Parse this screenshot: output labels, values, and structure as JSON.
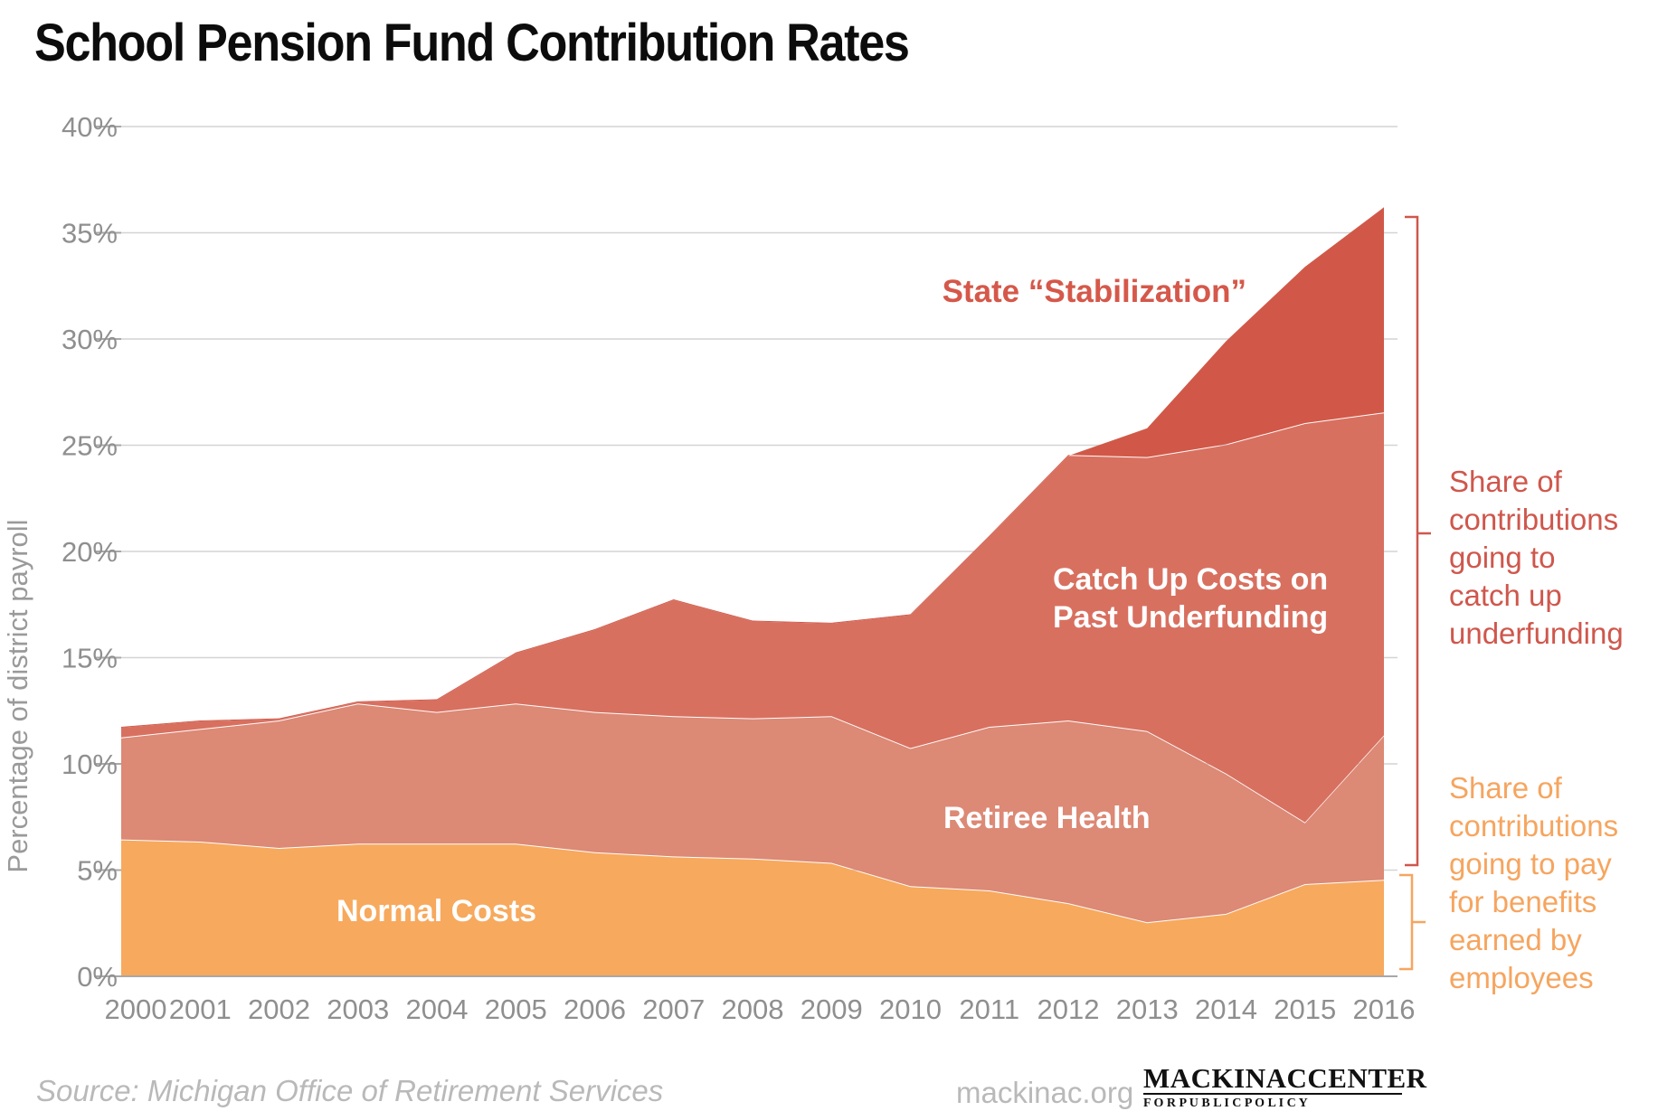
{
  "title": "School Pension Fund Contribution Rates",
  "chart_data": {
    "type": "area",
    "stacked": true,
    "title": "School Pension Fund Contribution Rates",
    "xlabel": "",
    "ylabel": "Percentage of district payroll",
    "ylim": [
      0,
      40
    ],
    "grid": true,
    "y_ticks": [
      "0%",
      "5%",
      "10%",
      "15%",
      "20%",
      "25%",
      "30%",
      "35%",
      "40%"
    ],
    "categories": [
      "2000",
      "2001",
      "2002",
      "2003",
      "2004",
      "2005",
      "2006",
      "2007",
      "2008",
      "2009",
      "2010",
      "2011",
      "2012",
      "2013",
      "2014",
      "2015",
      "2016"
    ],
    "series": [
      {
        "name": "Normal Costs",
        "color": "#f7a95d",
        "values": [
          6.4,
          6.3,
          6.0,
          6.2,
          6.2,
          6.2,
          5.8,
          5.6,
          5.5,
          5.3,
          4.2,
          4.0,
          3.4,
          2.5,
          2.9,
          4.3,
          4.5
        ]
      },
      {
        "name": "Retiree Health",
        "color": "#dc8975",
        "values": [
          4.8,
          5.3,
          6.0,
          6.6,
          6.2,
          6.6,
          6.6,
          6.6,
          6.6,
          6.9,
          6.5,
          7.7,
          8.6,
          9.0,
          6.6,
          2.9,
          6.8
        ]
      },
      {
        "name": "Catch Up Costs on Past Underfunding",
        "color": "#d87060",
        "values": [
          0.5,
          0.4,
          0.1,
          0.1,
          0.6,
          2.4,
          3.9,
          5.5,
          4.6,
          4.4,
          6.3,
          9.0,
          12.5,
          12.9,
          15.5,
          18.8,
          15.2
        ]
      },
      {
        "name": "State “Stabilization”",
        "color": "#d15848",
        "values": [
          0,
          0,
          0,
          0,
          0,
          0,
          0,
          0,
          0,
          0,
          0,
          0,
          0,
          1.4,
          4.9,
          7.4,
          9.7
        ]
      }
    ],
    "legend_position": "labels-inside-chart"
  },
  "axis": {
    "y_title": "Percentage of district payroll"
  },
  "inner_labels": {
    "stabilization": "State “Stabilization”",
    "catchup_line1": "Catch Up Costs on",
    "catchup_line2": "Past Underfunding",
    "retiree": "Retiree Health",
    "normal": "Normal Costs"
  },
  "annotations": {
    "catchup_share": "Share of\ncontributions\ngoing to\ncatch up\nunderfunding",
    "benefits_share": "Share of\ncontributions\ngoing to pay\nfor benefits\nearned by\nemployees",
    "catchup_color": "#cf574c",
    "benefits_color": "#f6a55f"
  },
  "footer": {
    "source": "Source: Michigan Office of Retirement Services",
    "site": "mackinac.org",
    "logo_word1": "MACKINAC",
    "logo_word2": "CENTER",
    "logo_line2": "F O R   P U B L I C   P O L I C Y",
    "logo_accent_color": "#16727f"
  }
}
